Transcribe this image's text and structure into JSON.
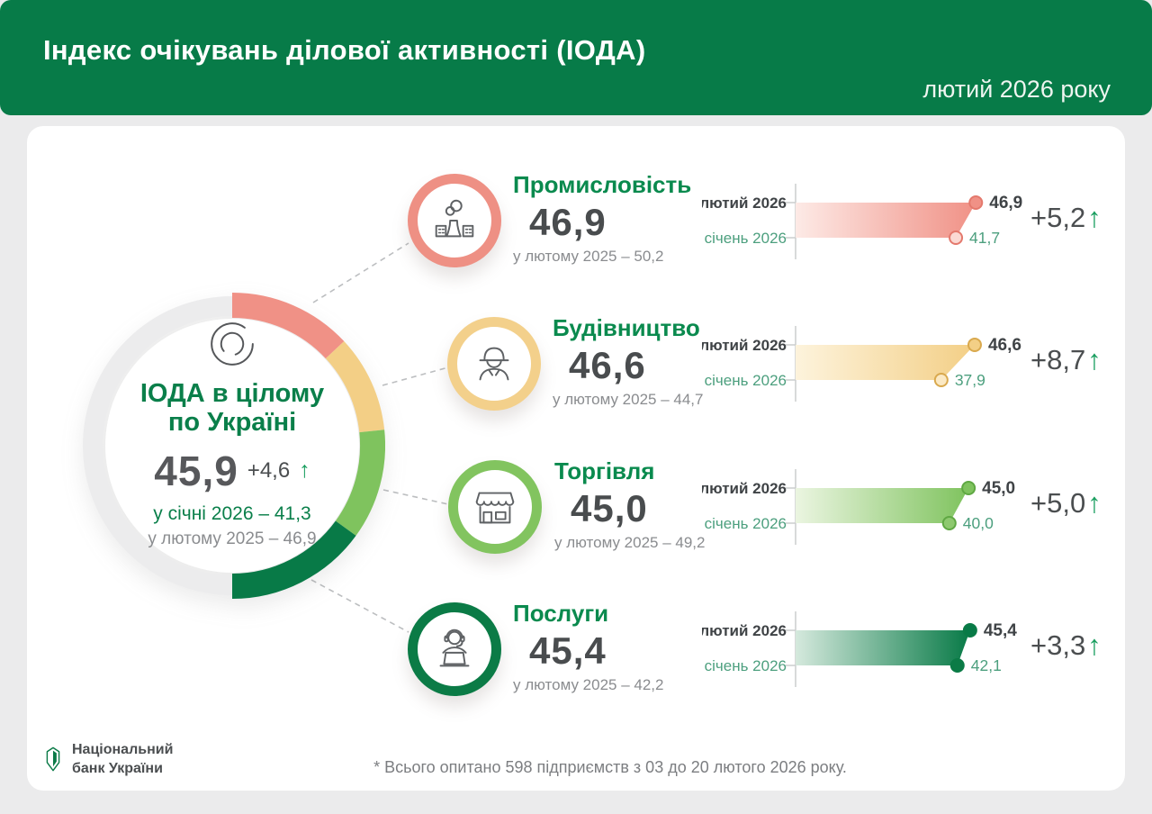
{
  "header": {
    "title": "Індекс очікувань ділової активності (ІОДА)",
    "period": "лютий 2026 року"
  },
  "overall": {
    "title_line1": "ІОДА в цілому",
    "title_line2": "по Україні",
    "value": "45,9",
    "delta": "+4,6",
    "arrow": "↑",
    "prev_month": "у січні 2026 – 41,3",
    "prev_year": "у лютому 2025 – 46,9"
  },
  "chart_labels": {
    "feb": "лютий 2026",
    "jan": "січень 2026"
  },
  "sectors": [
    {
      "name": "Промисловість",
      "value": "46,9",
      "prev_year": "у лютому 2025 – 50,2",
      "feb_value": "46,9",
      "jan_value": "41,7",
      "feb_num": 46.9,
      "jan_num": 41.7,
      "delta": "+5,2",
      "arrow": "↑",
      "icon": "factory-icon",
      "color_ring": "#ee9084",
      "color_main": "#f09186",
      "color_light": "#fdeae6",
      "color_marker": "#e4796d",
      "marker_jan_fill": "#fbd9d3"
    },
    {
      "name": "Будівництво",
      "value": "46,6",
      "prev_year": "у лютому 2025 – 44,7",
      "feb_value": "46,6",
      "jan_value": "37,9",
      "feb_num": 46.6,
      "jan_num": 37.9,
      "delta": "+8,7",
      "arrow": "↑",
      "icon": "builder-icon",
      "color_ring": "#f3d08b",
      "color_main": "#f3cf86",
      "color_light": "#fdf3dc",
      "color_marker": "#d9a94e",
      "marker_jan_fill": "#fbe9c4"
    },
    {
      "name": "Торгівля",
      "value": "45,0",
      "prev_year": "у лютому 2025 – 49,2",
      "feb_value": "45,0",
      "jan_value": "40,0",
      "feb_num": 45.0,
      "jan_num": 40.0,
      "delta": "+5,0",
      "arrow": "↑",
      "icon": "store-icon",
      "color_ring": "#82c45f",
      "color_main": "#7fc35e",
      "color_light": "#ebf5e1",
      "color_marker": "#5fa843",
      "marker_jan_fill": "#8ec96f"
    },
    {
      "name": "Послуги",
      "value": "45,4",
      "prev_year": "у лютому 2025 – 42,2",
      "feb_value": "45,4",
      "jan_value": "42,1",
      "feb_num": 45.4,
      "jan_num": 42.1,
      "delta": "+3,3",
      "arrow": "↑",
      "icon": "operator-icon",
      "color_ring": "#0b7b46",
      "color_main": "#087a47",
      "color_light": "#d5e9dd",
      "color_marker": "#0b7b46",
      "marker_jan_fill": "#0b7b46"
    }
  ],
  "footer": {
    "logo_line1": "Національний",
    "logo_line2": "банк України",
    "note": "* Всього опитано 598 підприємств з 03 до 20 лютого 2026 року."
  },
  "chart_data": {
    "type": "bar",
    "title": "Індекс очікувань ділової активності (ІОДА), лютий 2026",
    "categories": [
      "Промисловість",
      "Будівництво",
      "Торгівля",
      "Послуги"
    ],
    "series": [
      {
        "name": "лютий 2026",
        "values": [
          46.9,
          46.6,
          45.0,
          45.4
        ]
      },
      {
        "name": "січень 2026",
        "values": [
          41.7,
          37.9,
          40.0,
          42.1
        ]
      }
    ],
    "month_deltas": [
      5.2,
      8.7,
      5.0,
      3.3
    ],
    "feb_2025_values": [
      50.2,
      44.7,
      49.2,
      42.2
    ],
    "overall": {
      "value": 45.9,
      "delta": 4.6,
      "jan_2026": 41.3,
      "feb_2025": 46.9
    },
    "xlim": [
      0,
      50
    ],
    "legend_position": "row-labels-left",
    "grid": false
  }
}
